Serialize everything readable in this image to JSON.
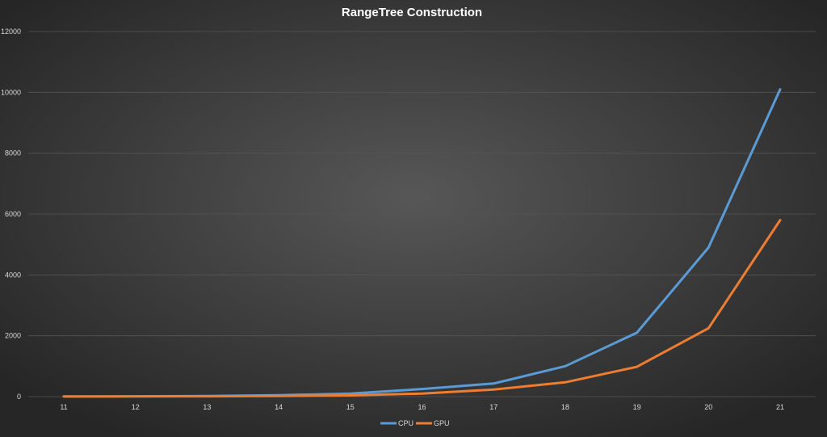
{
  "chart_data": {
    "type": "line",
    "title": "RangeTree Construction",
    "xlabel": "",
    "ylabel": "",
    "x": [
      "11",
      "12",
      "13",
      "14",
      "15",
      "16",
      "17",
      "18",
      "19",
      "20",
      "21"
    ],
    "ylim": [
      0,
      12000
    ],
    "yticks": [
      0,
      2000,
      4000,
      6000,
      8000,
      10000,
      12000
    ],
    "grid": true,
    "legend_position": "bottom",
    "series": [
      {
        "name": "CPU",
        "color": "#5b9bd5",
        "values": [
          5,
          10,
          20,
          45,
          100,
          250,
          430,
          1000,
          2100,
          4900,
          10100
        ]
      },
      {
        "name": "GPU",
        "color": "#ed7d31",
        "values": [
          3,
          5,
          10,
          20,
          40,
          100,
          230,
          470,
          980,
          2250,
          5800
        ]
      }
    ]
  },
  "colors": {
    "background_center": "#575757",
    "background_edge": "#262626",
    "gridline": "#555555"
  }
}
